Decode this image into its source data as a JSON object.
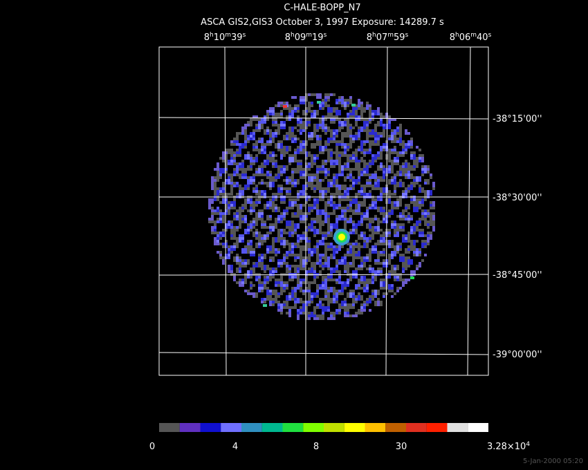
{
  "header": {
    "title": "C-HALE-BOPP_N7",
    "subtitle": "ASCA GIS2,GIS3 October 3, 1997 Exposure: 14289.7 s"
  },
  "ra_labels": [
    "8h10m39s",
    "8h09m19s",
    "8h07m59s",
    "8h06m40s"
  ],
  "dec_labels": [
    "-38°15'00''",
    "-38°30'00''",
    "-38°45'00''",
    "-39°00'00''"
  ],
  "colorbar": {
    "labels": [
      "0",
      "4",
      "8",
      "30",
      "3.28×10^4"
    ]
  },
  "footer": {
    "timestamp": "5-Jan-2000 05:20"
  }
}
